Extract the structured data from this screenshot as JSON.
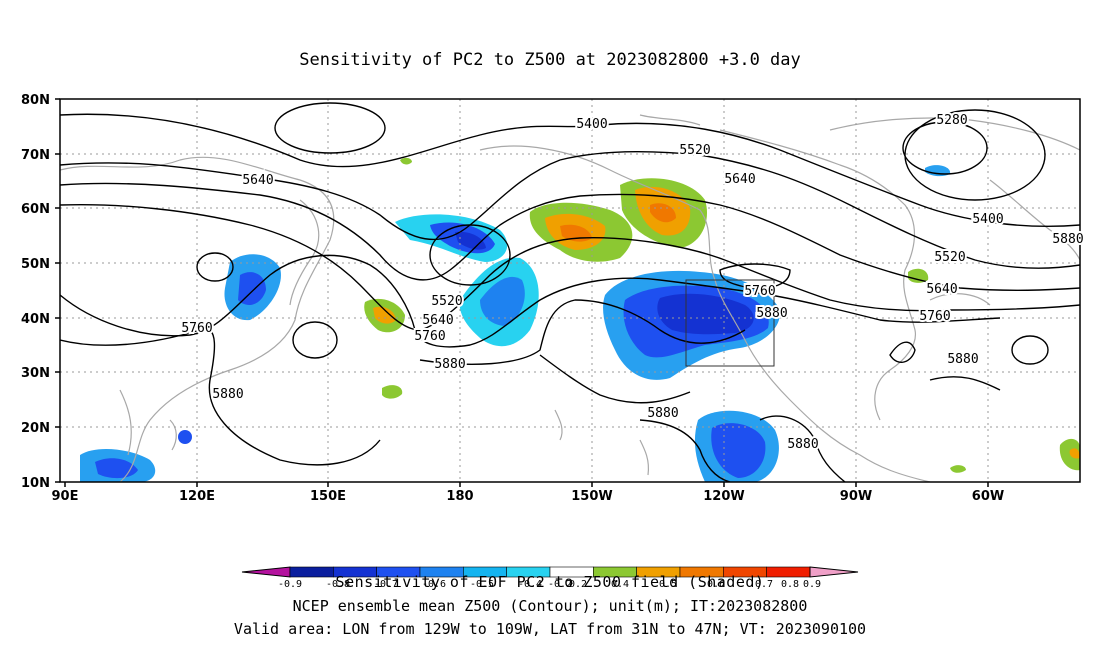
{
  "title": "Sensitivity of PC2 to Z500 at 2023082800 +3.0 day",
  "captions": {
    "line1": "Sensitivity of EOF PC2 to Z500 field (Shaded)",
    "line2": "NCEP ensemble mean Z500 (Contour); unit(m); IT:2023082800",
    "line3": "Valid area: LON from 129W to 109W, LAT from 31N to 47N; VT: 2023090100"
  },
  "axes": {
    "lat_labels": [
      "80N",
      "70N",
      "60N",
      "50N",
      "40N",
      "30N",
      "20N",
      "10N"
    ],
    "lon_labels": [
      "90E",
      "120E",
      "150E",
      "180",
      "150W",
      "120W",
      "90W",
      "60W"
    ]
  },
  "contour_labels": [
    "5400",
    "5280",
    "5520",
    "5640",
    "5640",
    "5400",
    "5520",
    "5640",
    "5760",
    "5880",
    "5520",
    "5640",
    "5760",
    "5880",
    "5760",
    "5880",
    "5880",
    "5880",
    "5880",
    "5760",
    "5880"
  ],
  "colorbar": {
    "tick_labels": [
      "-0.9",
      "-0.8",
      "-0.7",
      "-0.6",
      "-0.5",
      "-0.4",
      "-0.2",
      "0.2",
      "0.4",
      "0.5",
      "0.6",
      "0.7",
      "0.8",
      "0.9"
    ],
    "colors": [
      "#b4129e",
      "#0a1e9e",
      "#1432d2",
      "#1e50f0",
      "#1e82f0",
      "#14b4f0",
      "#28d2f0",
      "#ffffff",
      "#8cc832",
      "#f0a000",
      "#f07800",
      "#f04600",
      "#f01e00",
      "#f0a0c8"
    ]
  },
  "colors": {
    "coast": "#a8a8a8",
    "contour": "#000000",
    "grid": "#9a9a9a"
  }
}
